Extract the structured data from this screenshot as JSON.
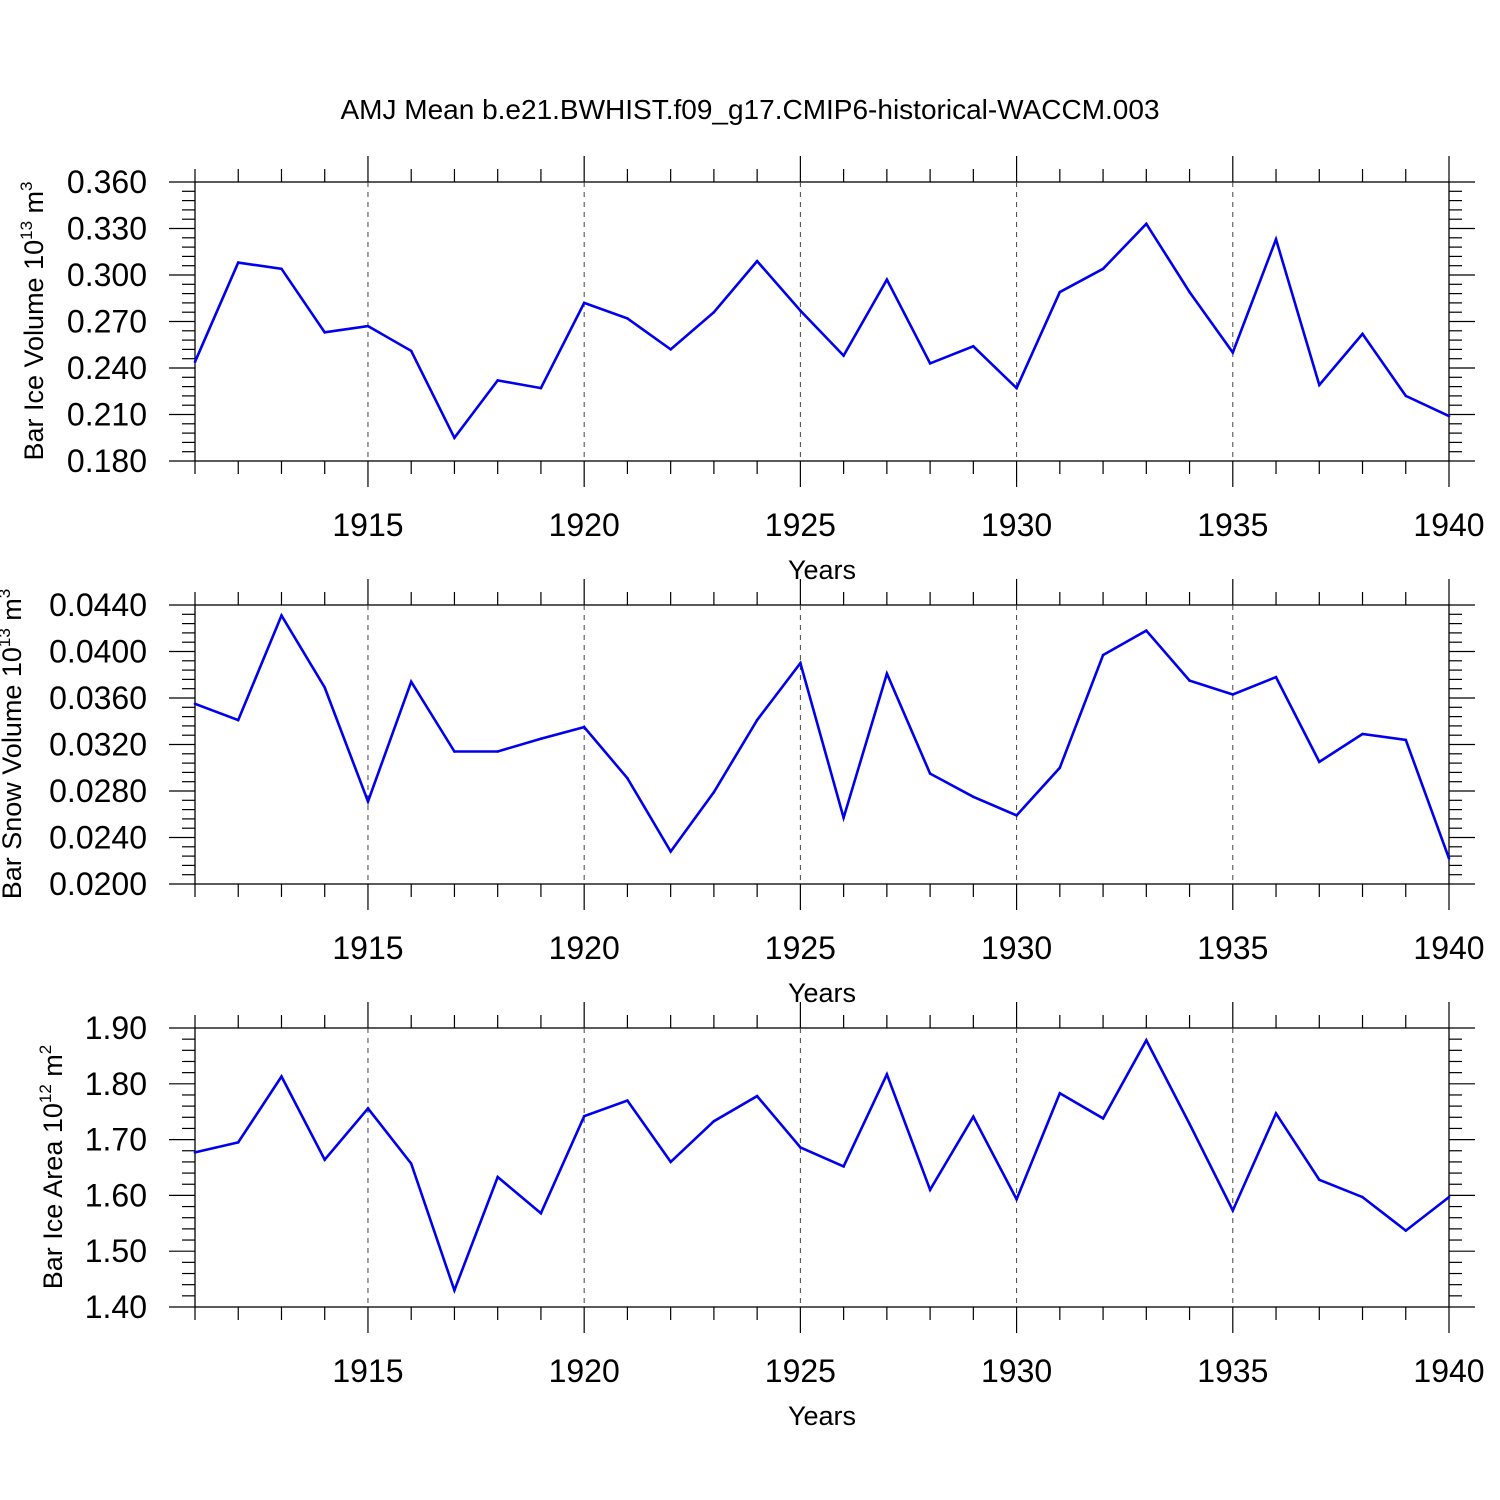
{
  "chart_data": {
    "type": "line",
    "title": "AMJ Mean b.e21.BWHIST.f09_g17.CMIP6-historical-WACCM.003",
    "line_color": "#0000ee",
    "grid": "vertical dashed lines at major x ticks",
    "x": [
      1911,
      1912,
      1913,
      1914,
      1915,
      1916,
      1917,
      1918,
      1919,
      1920,
      1921,
      1922,
      1923,
      1924,
      1925,
      1926,
      1927,
      1928,
      1929,
      1930,
      1931,
      1932,
      1933,
      1934,
      1935,
      1936,
      1937,
      1938,
      1939,
      1940
    ],
    "xlim": [
      1911,
      1940
    ],
    "x_ticks": [
      1915,
      1920,
      1925,
      1930,
      1935,
      1940
    ],
    "panels": [
      {
        "xlabel": "Years",
        "ylabel": {
          "base": "Bar Ice Volume 10",
          "exp1": "13",
          "mid": " m",
          "exp2": "3"
        },
        "ylim": [
          0.18,
          0.36
        ],
        "y_ticks": [
          "0.180",
          "0.210",
          "0.240",
          "0.270",
          "0.300",
          "0.330",
          "0.360"
        ],
        "values": [
          0.244,
          0.308,
          0.304,
          0.263,
          0.267,
          0.251,
          0.195,
          0.232,
          0.227,
          0.282,
          0.272,
          0.252,
          0.276,
          0.309,
          0.277,
          0.248,
          0.297,
          0.243,
          0.254,
          0.227,
          0.289,
          0.304,
          0.333,
          0.289,
          0.25,
          0.323,
          0.229,
          0.262,
          0.222,
          0.209
        ]
      },
      {
        "xlabel": "Years",
        "ylabel": {
          "base": "Bar Snow Volume 10",
          "exp1": "13",
          "mid": " m",
          "exp2": "3"
        },
        "ylim": [
          0.02,
          0.044
        ],
        "y_ticks": [
          "0.0200",
          "0.0240",
          "0.0280",
          "0.0320",
          "0.0360",
          "0.0400",
          "0.0440"
        ],
        "values": [
          0.0355,
          0.0341,
          0.0431,
          0.0369,
          0.0271,
          0.0374,
          0.0314,
          0.0314,
          0.0325,
          0.0335,
          0.0291,
          0.0228,
          0.0279,
          0.0341,
          0.039,
          0.0257,
          0.0381,
          0.0295,
          0.0275,
          0.0259,
          0.03,
          0.0397,
          0.0418,
          0.0375,
          0.0363,
          0.0378,
          0.0305,
          0.0329,
          0.0324,
          0.0222
        ]
      },
      {
        "xlabel": "Years",
        "ylabel": {
          "base": "Bar Ice Area 10",
          "exp1": "12",
          "mid": " m",
          "exp2": "2"
        },
        "ylim": [
          1.4,
          1.9
        ],
        "y_ticks": [
          "1.40",
          "1.50",
          "1.60",
          "1.70",
          "1.80",
          "1.90"
        ],
        "values": [
          1.677,
          1.695,
          1.813,
          1.664,
          1.756,
          1.657,
          1.43,
          1.633,
          1.568,
          1.742,
          1.77,
          1.66,
          1.733,
          1.778,
          1.686,
          1.652,
          1.817,
          1.61,
          1.741,
          1.593,
          1.783,
          1.738,
          1.878,
          1.728,
          1.573,
          1.747,
          1.628,
          1.597,
          1.537,
          1.597
        ]
      }
    ]
  }
}
